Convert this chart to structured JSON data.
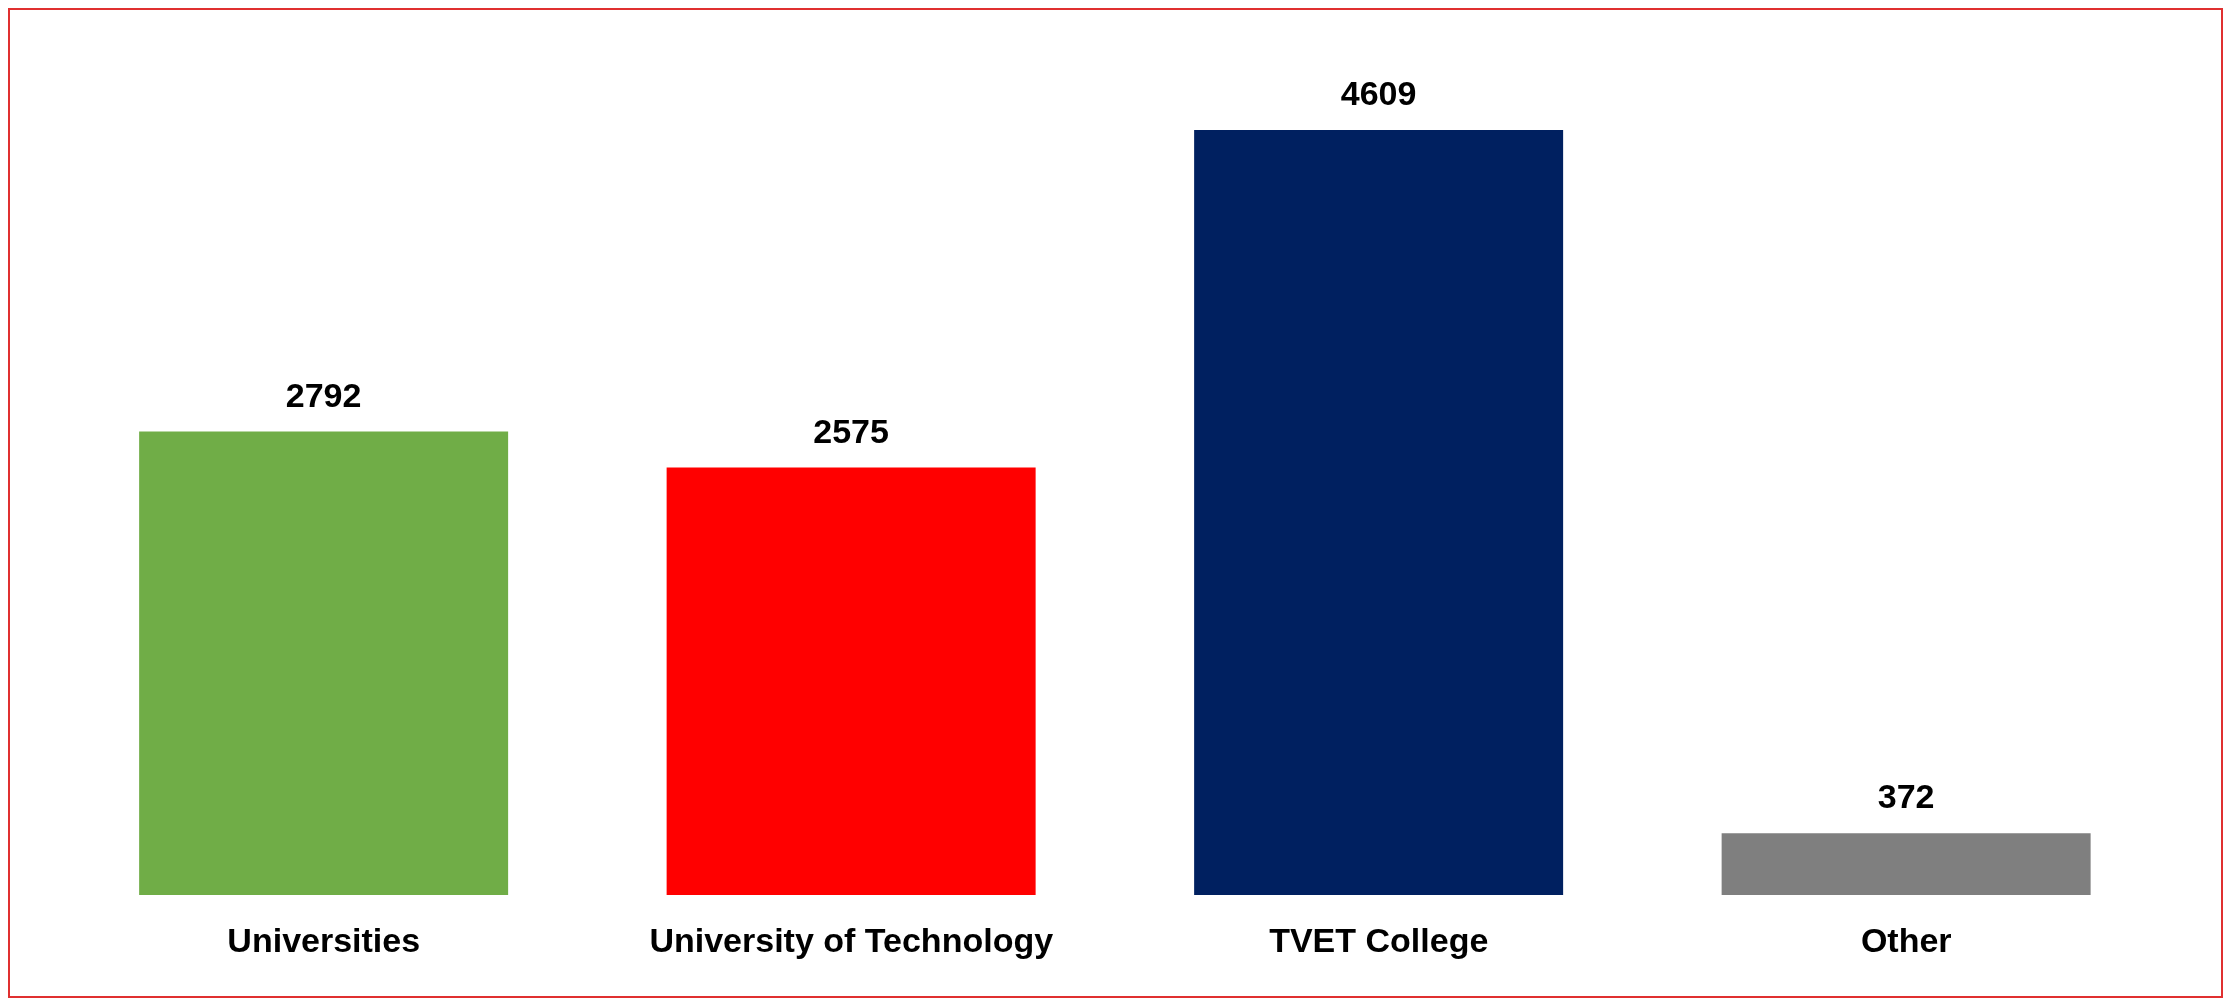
{
  "chart_data": {
    "type": "bar",
    "categories": [
      "Universities",
      "University of Technology",
      "TVET College",
      "Other"
    ],
    "values": [
      2792,
      2575,
      4609,
      372
    ],
    "colors": [
      "#70ad47",
      "#ff0000",
      "#002060",
      "#7f7f7f"
    ],
    "data_labels": true,
    "grid": false,
    "legend": false
  }
}
